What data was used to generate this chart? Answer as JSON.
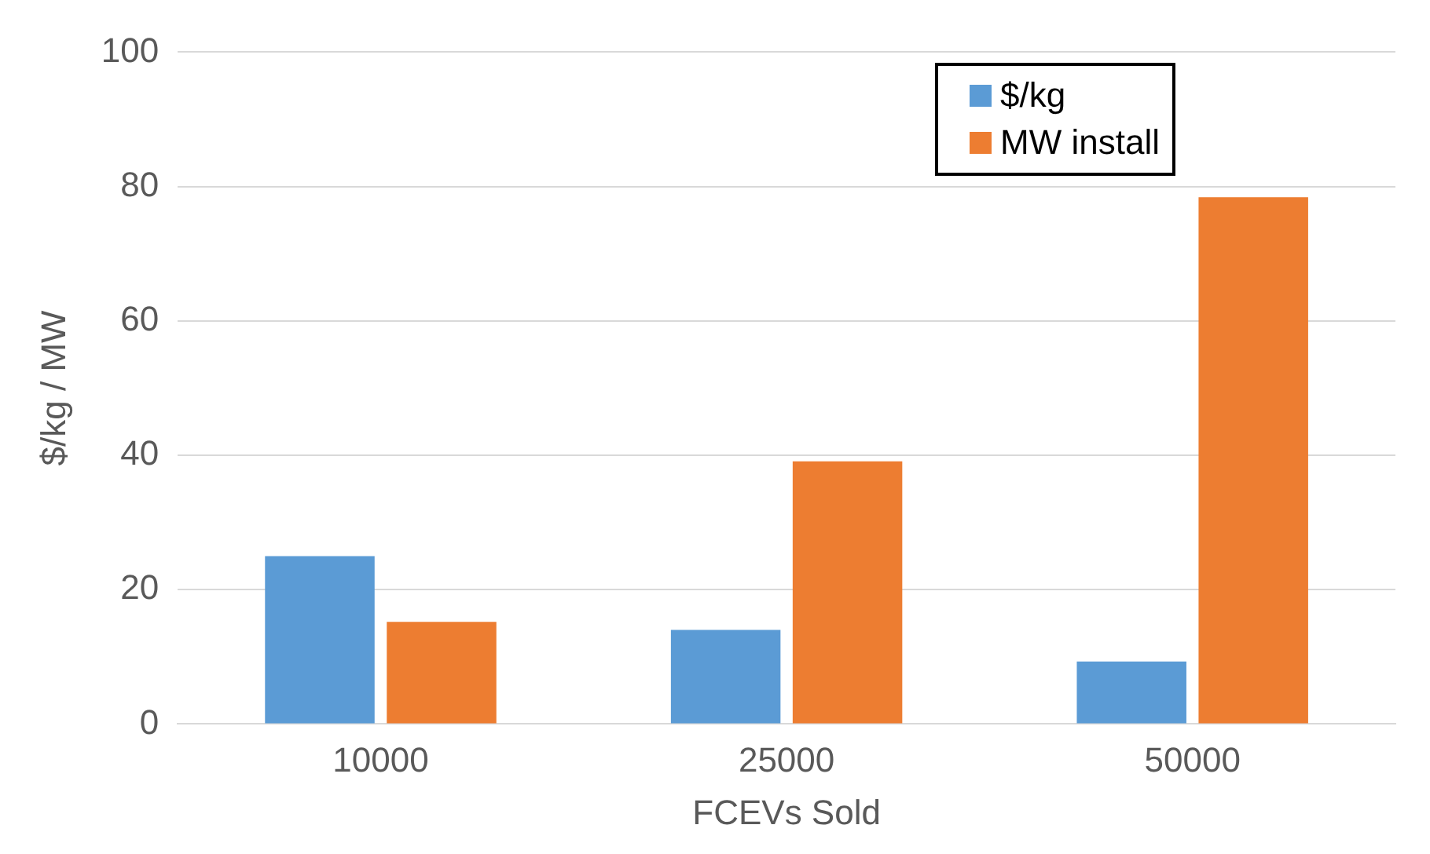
{
  "chart_data": {
    "type": "bar",
    "xlabel": "FCEVs Sold",
    "ylabel": "$/kg / MW",
    "categories": [
      "10000",
      "25000",
      "50000"
    ],
    "series": [
      {
        "name": "$/kg",
        "color": "#5b9bd5",
        "values": [
          25,
          14,
          9.3
        ]
      },
      {
        "name": "MW install",
        "color": "#ed7d31",
        "values": [
          15.2,
          39.1,
          78.4
        ]
      }
    ],
    "ylim": [
      0,
      100
    ],
    "yticks": [
      0,
      20,
      40,
      60,
      80,
      100
    ],
    "grid": "y",
    "legend": "top right"
  }
}
